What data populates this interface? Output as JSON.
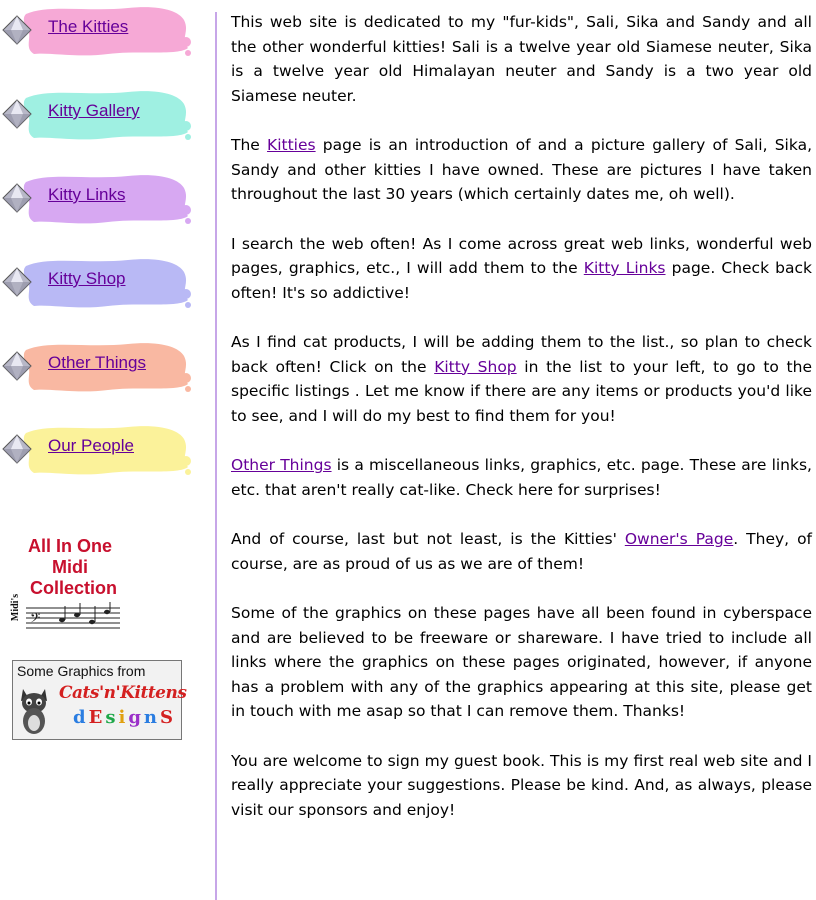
{
  "nav": {
    "items": [
      {
        "label": "The Kitties",
        "color": "#f6a9d6"
      },
      {
        "label": "Kitty Gallery",
        "color": "#9ff0e2"
      },
      {
        "label": "Kitty Links",
        "color": "#d7a8f2"
      },
      {
        "label": "Kitty Shop",
        "color": "#b9b9f5"
      },
      {
        "label": "Other Things",
        "color": "#f9b8a2"
      },
      {
        "label": "Our People",
        "color": "#fbf29a"
      }
    ]
  },
  "badges": {
    "midi": {
      "line1": "All In One",
      "line2": "Midi",
      "line3": "Collection",
      "side": "Midi's"
    },
    "cnk": {
      "top": "Some Graphics from",
      "mid": "Cats'n'Kittens",
      "bot": "dEsignS"
    }
  },
  "main": {
    "p1": "This web site is dedicated to my \"fur-kids\", Sali, Sika and Sandy and all the other wonderful kitties!  Sali is a twelve year old Siamese neuter, Sika is a twelve year old Himalayan neuter and Sandy is a two year old Siamese neuter.",
    "p2a": "The ",
    "p2link": "Kitties",
    "p2b": " page is an introduction of and a picture gallery of Sali, Sika, Sandy and other kitties I have owned.  These are pictures I have taken throughout the last 30 years (which certainly dates me, oh well).",
    "p3a": "I search the web often!  As I come across great web links, wonderful web pages, graphics, etc., I will add them to the ",
    "p3link": "Kitty Links",
    "p3b": " page.  Check back often!  It's so addictive!",
    "p4a": "As I find cat products, I will be adding them to the list., so plan to check back often! Click on the ",
    "p4link": "Kitty Shop",
    "p4b": " in the list to your left, to go to the specific listings .  Let me know if there are any items or products you'd like to see, and I will do my best to find them for you!",
    "p5link": "Other Things",
    "p5b": " is a miscellaneous links, graphics, etc. page.  These are links, etc. that aren't really cat-like.  Check here for surprises!",
    "p6a": "And of course, last but not least, is the Kitties' ",
    "p6link": "Owner's Page",
    "p6b": ".  They, of course, are as proud of us as we are of them!",
    "p7": "Some of the graphics on these pages have all been found in cyberspace and are believed to be freeware or shareware. I have tried to include all links where the graphics on these pages originated, however, if anyone has a problem with any of the graphics appearing at this site, please get in touch with me asap so that I can remove them. Thanks!",
    "p8": "You are welcome to sign my guest book.  This is my first real web site and I really appreciate your suggestions.  Please be kind.  And, as always, please visit our sponsors and enjoy!"
  }
}
